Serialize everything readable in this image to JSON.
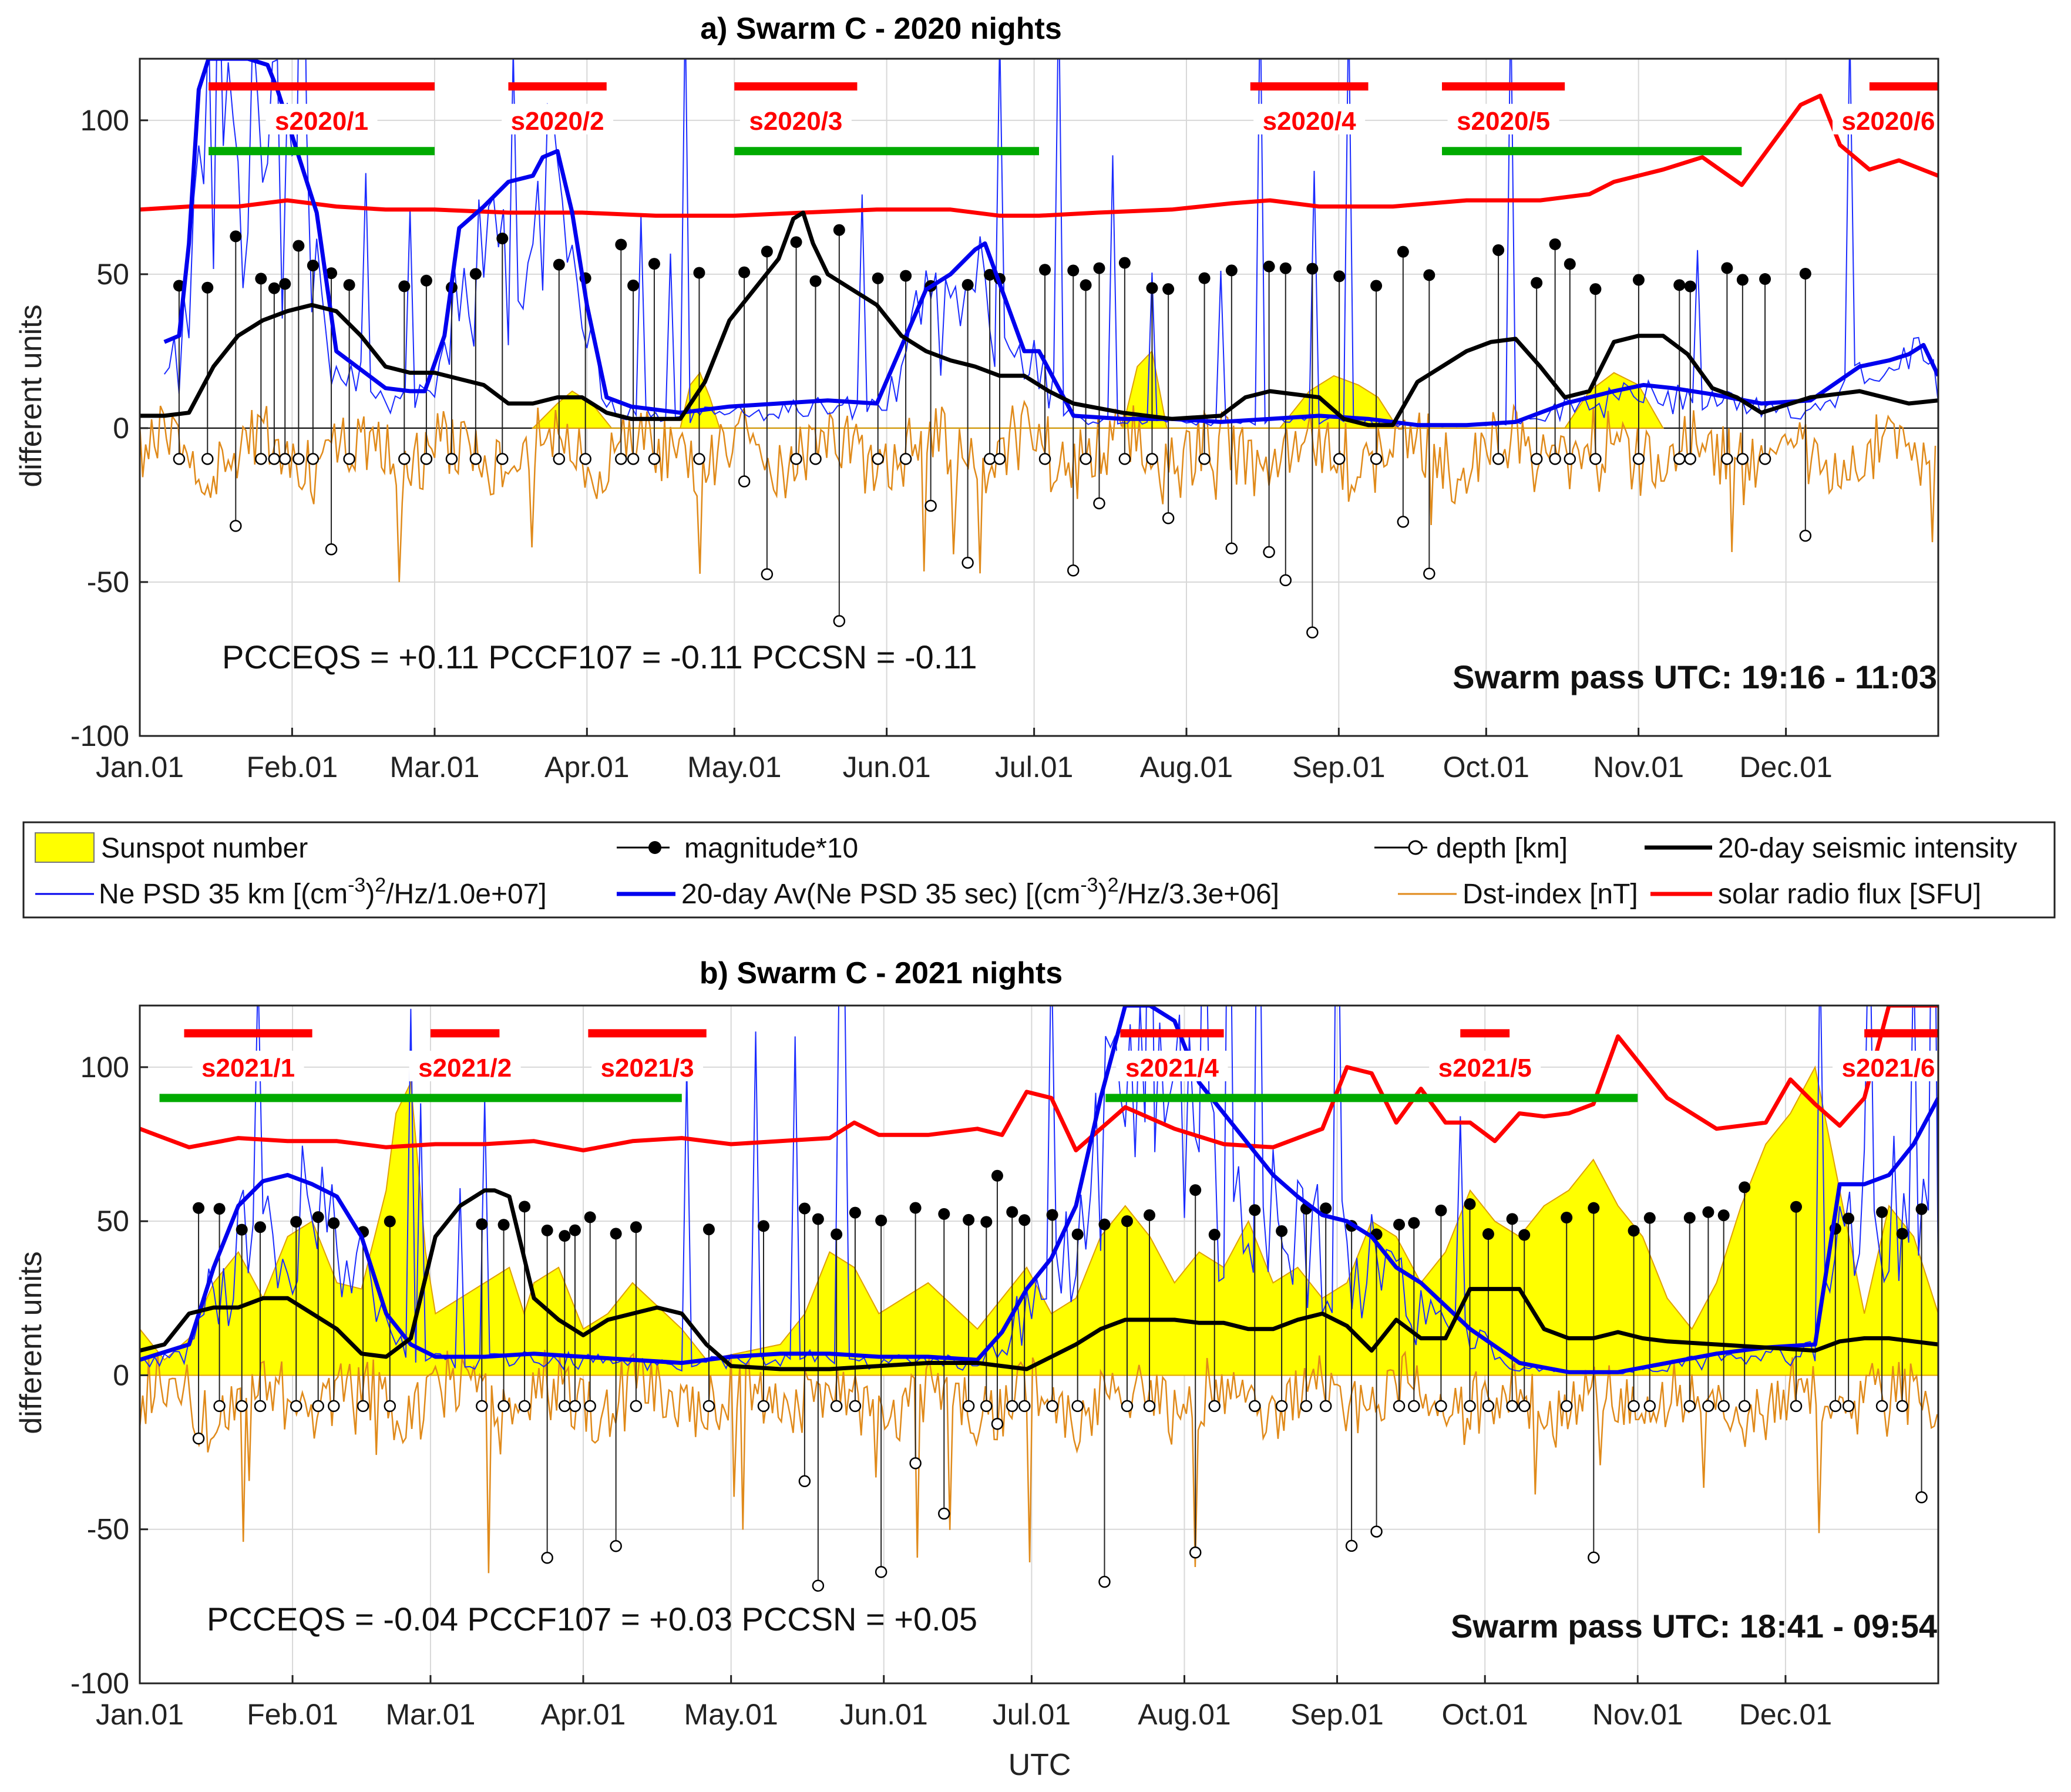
{
  "chart_data": [
    {
      "type": "line",
      "title": "a) Swarm C - 2020 nights",
      "xlabel": "",
      "ylabel": "different units",
      "ylim": [
        -100,
        120
      ],
      "yticks": [
        -100,
        -50,
        0,
        50,
        100
      ],
      "xtick_labels": [
        "Jan.01",
        "Feb.01",
        "Mar.01",
        "Apr.01",
        "May.01",
        "Jun.01",
        "Jul.01",
        "Aug.01",
        "Sep.01",
        "Oct.01",
        "Nov.01",
        "Dec.01"
      ],
      "xtick_days": [
        0,
        31,
        60,
        91,
        121,
        152,
        182,
        213,
        244,
        274,
        305,
        335
      ],
      "days_in_year": 366,
      "stats_text": "PCCEQS = +0.11  PCCF107 = -0.11  PCCSN = -0.11",
      "pass_text": "Swarm pass UTC: 19:16 - 11:03",
      "red_segments": [
        {
          "label": "s2020/1",
          "start": 14,
          "end": 60
        },
        {
          "label": "s2020/2",
          "start": 75,
          "end": 95
        },
        {
          "label": "s2020/3",
          "start": 121,
          "end": 146
        },
        {
          "label": "s2020/4",
          "start": 226,
          "end": 250
        },
        {
          "label": "s2020/5",
          "start": 265,
          "end": 290
        },
        {
          "label": "s2020/6",
          "start": 352,
          "end": 366
        }
      ],
      "green_segments": [
        {
          "start": 14,
          "end": 60
        },
        {
          "start": 121,
          "end": 183
        },
        {
          "start": 265,
          "end": 326
        }
      ],
      "series": [
        {
          "name": "solar radio flux [SFU]",
          "color": "#ff0000",
          "x": [
            0,
            10,
            20,
            30,
            40,
            50,
            60,
            75,
            90,
            105,
            121,
            135,
            150,
            165,
            175,
            183,
            195,
            210,
            222,
            230,
            240,
            255,
            270,
            285,
            295,
            300,
            310,
            318,
            326,
            332,
            338,
            342,
            346,
            352,
            358,
            366
          ],
          "y": [
            71,
            72,
            72,
            74,
            72,
            71,
            71,
            70,
            70,
            69,
            69,
            70,
            71,
            71,
            69,
            69,
            70,
            71,
            73,
            74,
            72,
            72,
            74,
            74,
            76,
            80,
            84,
            88,
            79,
            92,
            105,
            108,
            92,
            84,
            87,
            82
          ]
        },
        {
          "name": "20-day Av(Ne PSD 35 sec) [(cm-3)2/Hz/3.3e+06]",
          "color": "#0000ee",
          "x": [
            5,
            8,
            10,
            12,
            14,
            18,
            22,
            26,
            28,
            32,
            36,
            40,
            50,
            55,
            58,
            62,
            65,
            70,
            75,
            80,
            82,
            85,
            88,
            91,
            95,
            100,
            110,
            120,
            130,
            140,
            150,
            160,
            165,
            170,
            172,
            180,
            183,
            190,
            200,
            210,
            220,
            230,
            240,
            250,
            260,
            270,
            280,
            290,
            295,
            300,
            306,
            312,
            320,
            330,
            340,
            350,
            356,
            360,
            363,
            366
          ],
          "y": [
            28,
            30,
            60,
            110,
            120,
            120,
            120,
            118,
            110,
            90,
            70,
            25,
            13,
            12,
            12,
            30,
            65,
            72,
            80,
            82,
            88,
            90,
            70,
            40,
            10,
            7,
            5,
            7,
            8,
            9,
            8,
            45,
            50,
            58,
            60,
            25,
            25,
            4,
            3,
            3,
            2,
            3,
            4,
            3,
            1,
            1,
            2,
            8,
            10,
            12,
            14,
            13,
            11,
            8,
            9,
            20,
            22,
            24,
            27,
            17
          ]
        },
        {
          "name": "20-day seismic intensity",
          "color": "#000000",
          "x": [
            0,
            5,
            10,
            15,
            20,
            25,
            30,
            35,
            40,
            45,
            50,
            55,
            60,
            65,
            70,
            75,
            80,
            85,
            90,
            95,
            100,
            110,
            115,
            120,
            125,
            130,
            133,
            135,
            137,
            140,
            145,
            150,
            155,
            160,
            165,
            170,
            175,
            180,
            185,
            190,
            200,
            210,
            220,
            225,
            230,
            240,
            245,
            250,
            255,
            260,
            265,
            270,
            275,
            280,
            285,
            290,
            295,
            300,
            305,
            310,
            315,
            320,
            325,
            330,
            340,
            345,
            350,
            355,
            360,
            366
          ],
          "y": [
            4,
            4,
            5,
            20,
            30,
            35,
            38,
            40,
            38,
            30,
            20,
            18,
            18,
            16,
            14,
            8,
            8,
            10,
            10,
            5,
            3,
            3,
            15,
            35,
            45,
            55,
            68,
            70,
            60,
            50,
            45,
            40,
            30,
            25,
            22,
            20,
            17,
            17,
            12,
            8,
            5,
            3,
            4,
            10,
            12,
            10,
            3,
            1,
            1,
            15,
            20,
            25,
            28,
            29,
            20,
            10,
            12,
            28,
            30,
            30,
            24,
            13,
            10,
            5,
            10,
            11,
            12,
            10,
            8,
            9
          ]
        },
        {
          "name": "Sunspot number",
          "color": "#ffff00",
          "x": [
            80,
            85,
            88,
            92,
            96,
            110,
            112,
            114,
            116,
            118,
            200,
            203,
            206,
            209,
            232,
            238,
            243,
            248,
            252,
            256,
            290,
            295,
            300,
            305,
            310
          ],
          "y": [
            0,
            8,
            12,
            8,
            0,
            0,
            14,
            18,
            10,
            0,
            0,
            20,
            25,
            0,
            0,
            12,
            17,
            14,
            10,
            0,
            0,
            12,
            18,
            14,
            0
          ]
        }
      ]
    },
    {
      "type": "line",
      "title": "b) Swarm C - 2021 nights",
      "xlabel": "UTC",
      "ylabel": "different units",
      "ylim": [
        -100,
        120
      ],
      "yticks": [
        -100,
        -50,
        0,
        50,
        100
      ],
      "xtick_labels": [
        "Jan.01",
        "Feb.01",
        "Mar.01",
        "Apr.01",
        "May.01",
        "Jun.01",
        "Jul.01",
        "Aug.01",
        "Sep.01",
        "Oct.01",
        "Nov.01",
        "Dec.01"
      ],
      "xtick_days": [
        0,
        31,
        59,
        90,
        120,
        151,
        181,
        212,
        243,
        273,
        304,
        334
      ],
      "days_in_year": 365,
      "stats_text": "PCCEQS = -0.04  PCCF107 = +0.03  PCCSN = +0.05",
      "pass_text": "Swarm pass UTC: 18:41 - 09:54",
      "red_segments": [
        {
          "label": "s2021/1",
          "start": 9,
          "end": 35
        },
        {
          "label": "s2021/2",
          "start": 59,
          "end": 73
        },
        {
          "label": "s2021/3",
          "start": 91,
          "end": 115
        },
        {
          "label": "s2021/4",
          "start": 199,
          "end": 220
        },
        {
          "label": "s2021/5",
          "start": 268,
          "end": 278
        },
        {
          "label": "s2021/6",
          "start": 350,
          "end": 365
        }
      ],
      "green_segments": [
        {
          "start": 4,
          "end": 110
        },
        {
          "start": 196,
          "end": 304
        }
      ],
      "series": [
        {
          "name": "solar radio flux [SFU]",
          "color": "#ff0000",
          "x": [
            0,
            5,
            10,
            20,
            30,
            40,
            50,
            60,
            70,
            80,
            90,
            100,
            110,
            120,
            130,
            140,
            145,
            150,
            160,
            170,
            175,
            180,
            185,
            190,
            195,
            200,
            210,
            220,
            230,
            240,
            245,
            250,
            255,
            260,
            265,
            270,
            275,
            280,
            285,
            290,
            295,
            300,
            305,
            310,
            320,
            330,
            335,
            340,
            345,
            350,
            355,
            365
          ],
          "y": [
            80,
            77,
            74,
            77,
            76,
            76,
            74,
            75,
            75,
            76,
            73,
            76,
            77,
            75,
            76,
            77,
            82,
            78,
            78,
            80,
            78,
            92,
            90,
            73,
            80,
            87,
            80,
            75,
            74,
            80,
            100,
            98,
            82,
            93,
            82,
            82,
            76,
            85,
            84,
            85,
            88,
            110,
            100,
            90,
            80,
            82,
            96,
            88,
            81,
            90,
            120,
            120
          ]
        },
        {
          "name": "20-day Av(Ne PSD 35 sec) [(cm-3)2/Hz/3.3e+06]",
          "color": "#0000ee",
          "x": [
            0,
            10,
            15,
            20,
            25,
            30,
            35,
            40,
            45,
            50,
            55,
            60,
            70,
            80,
            90,
            100,
            110,
            120,
            130,
            140,
            150,
            160,
            170,
            175,
            180,
            185,
            190,
            195,
            200,
            205,
            210,
            215,
            220,
            225,
            230,
            235,
            240,
            245,
            250,
            255,
            260,
            270,
            280,
            290,
            300,
            310,
            320,
            330,
            340,
            345,
            350,
            355,
            360,
            365
          ],
          "y": [
            5,
            10,
            35,
            55,
            63,
            65,
            62,
            58,
            45,
            20,
            10,
            6,
            6,
            7,
            6,
            5,
            4,
            6,
            7,
            7,
            6,
            6,
            5,
            14,
            28,
            38,
            55,
            90,
            120,
            120,
            115,
            95,
            85,
            75,
            65,
            58,
            52,
            50,
            45,
            35,
            30,
            15,
            4,
            1,
            1,
            4,
            7,
            9,
            10,
            62,
            62,
            65,
            75,
            90
          ]
        },
        {
          "name": "20-day seismic intensity",
          "color": "#000000",
          "x": [
            0,
            5,
            10,
            15,
            20,
            25,
            30,
            35,
            40,
            45,
            50,
            55,
            60,
            65,
            70,
            72,
            75,
            80,
            85,
            90,
            95,
            100,
            105,
            110,
            115,
            120,
            130,
            140,
            150,
            160,
            170,
            180,
            190,
            195,
            200,
            205,
            210,
            215,
            220,
            225,
            230,
            235,
            240,
            245,
            250,
            255,
            260,
            265,
            270,
            275,
            280,
            285,
            290,
            295,
            300,
            305,
            310,
            320,
            330,
            340,
            345,
            350,
            355,
            360,
            365
          ],
          "y": [
            8,
            10,
            20,
            22,
            22,
            25,
            25,
            20,
            15,
            7,
            6,
            12,
            45,
            55,
            60,
            60,
            58,
            25,
            18,
            13,
            18,
            20,
            22,
            20,
            10,
            3,
            2,
            2,
            3,
            4,
            4,
            2,
            10,
            15,
            18,
            18,
            18,
            17,
            17,
            15,
            15,
            18,
            20,
            16,
            8,
            18,
            12,
            12,
            28,
            28,
            28,
            15,
            12,
            12,
            14,
            12,
            11,
            10,
            9,
            8,
            11,
            12,
            12,
            11,
            10
          ]
        },
        {
          "name": "Sunspot number",
          "color": "#ffff00",
          "x": [
            0,
            5,
            10,
            15,
            20,
            25,
            30,
            35,
            40,
            45,
            50,
            52,
            55,
            58,
            60,
            65,
            70,
            75,
            78,
            80,
            85,
            90,
            95,
            100,
            110,
            115,
            130,
            135,
            140,
            145,
            150,
            160,
            170,
            180,
            185,
            190,
            195,
            200,
            205,
            210,
            215,
            220,
            225,
            230,
            235,
            240,
            245,
            250,
            255,
            260,
            265,
            270,
            275,
            280,
            285,
            290,
            295,
            300,
            305,
            310,
            315,
            320,
            325,
            330,
            335,
            340,
            345,
            350,
            355,
            360,
            365
          ],
          "y": [
            15,
            5,
            12,
            30,
            40,
            25,
            45,
            50,
            30,
            28,
            60,
            85,
            95,
            40,
            20,
            25,
            30,
            35,
            20,
            30,
            35,
            15,
            20,
            30,
            15,
            5,
            10,
            20,
            40,
            35,
            20,
            30,
            15,
            35,
            20,
            25,
            45,
            55,
            45,
            30,
            40,
            35,
            50,
            30,
            35,
            25,
            30,
            50,
            45,
            30,
            40,
            60,
            50,
            45,
            55,
            60,
            70,
            55,
            45,
            25,
            15,
            30,
            55,
            75,
            85,
            100,
            60,
            20,
            55,
            45,
            20
          ]
        }
      ]
    }
  ],
  "legend": {
    "row1": [
      "Sunspot number",
      "magnitude*10",
      "depth [km]",
      "20-day seismic intensity"
    ],
    "row2": [
      "Ne PSD 35 km [(cm",
      "-3",
      ")",
      "2",
      "/Hz/1.0e+07]",
      "20-day Av(Ne PSD 35 sec) [(cm",
      "-3",
      ")",
      "2",
      "/Hz/3.3e+06]",
      "Dst-index [nT]",
      "solar radio flux [SFU]"
    ]
  }
}
